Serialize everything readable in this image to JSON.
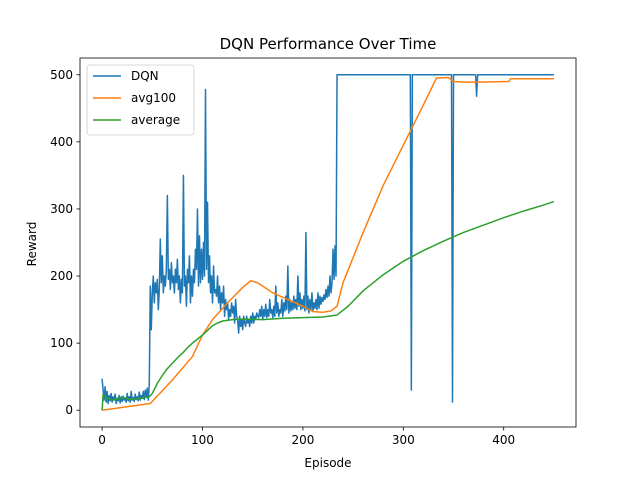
{
  "chart_data": {
    "type": "line",
    "title": "DQN Performance Over Time",
    "xlabel": "Episode",
    "ylabel": "Reward",
    "xlim": [
      -22,
      472
    ],
    "ylim": [
      -25,
      525
    ],
    "xticks": [
      0,
      100,
      200,
      300,
      400
    ],
    "yticks": [
      0,
      100,
      200,
      300,
      400,
      500
    ],
    "grid": false,
    "legend": "top-left",
    "series": [
      {
        "name": "DQN",
        "color": "#1f77b4",
        "points": [
          [
            0,
            47
          ],
          [
            1,
            30
          ],
          [
            2,
            15
          ],
          [
            3,
            35
          ],
          [
            4,
            12
          ],
          [
            5,
            28
          ],
          [
            6,
            10
          ],
          [
            7,
            22
          ],
          [
            8,
            14
          ],
          [
            9,
            25
          ],
          [
            10,
            12
          ],
          [
            11,
            20
          ],
          [
            12,
            15
          ],
          [
            13,
            24
          ],
          [
            14,
            10
          ],
          [
            15,
            18
          ],
          [
            16,
            14
          ],
          [
            17,
            22
          ],
          [
            18,
            11
          ],
          [
            19,
            20
          ],
          [
            20,
            13
          ],
          [
            21,
            21
          ],
          [
            22,
            15
          ],
          [
            23,
            18
          ],
          [
            24,
            12
          ],
          [
            25,
            25
          ],
          [
            26,
            14
          ],
          [
            27,
            20
          ],
          [
            28,
            12
          ],
          [
            29,
            28
          ],
          [
            30,
            15
          ],
          [
            31,
            19
          ],
          [
            32,
            13
          ],
          [
            33,
            24
          ],
          [
            34,
            16
          ],
          [
            35,
            20
          ],
          [
            36,
            14
          ],
          [
            37,
            27
          ],
          [
            38,
            15
          ],
          [
            39,
            22
          ],
          [
            40,
            18
          ],
          [
            41,
            28
          ],
          [
            42,
            16
          ],
          [
            43,
            30
          ],
          [
            44,
            20
          ],
          [
            45,
            33
          ],
          [
            46,
            15
          ],
          [
            47,
            40
          ],
          [
            48,
            185
          ],
          [
            49,
            120
          ],
          [
            50,
            175
          ],
          [
            51,
            200
          ],
          [
            52,
            160
          ],
          [
            53,
            190
          ],
          [
            54,
            175
          ],
          [
            55,
            195
          ],
          [
            56,
            150
          ],
          [
            57,
            180
          ],
          [
            58,
            255
          ],
          [
            59,
            190
          ],
          [
            60,
            230
          ],
          [
            61,
            175
          ],
          [
            62,
            200
          ],
          [
            63,
            185
          ],
          [
            64,
            210
          ],
          [
            65,
            320
          ],
          [
            66,
            195
          ],
          [
            67,
            210
          ],
          [
            68,
            180
          ],
          [
            69,
            220
          ],
          [
            70,
            190
          ],
          [
            71,
            200
          ],
          [
            72,
            175
          ],
          [
            73,
            210
          ],
          [
            74,
            190
          ],
          [
            75,
            225
          ],
          [
            76,
            180
          ],
          [
            77,
            200
          ],
          [
            78,
            160
          ],
          [
            79,
            195
          ],
          [
            80,
            175
          ],
          [
            81,
            350
          ],
          [
            82,
            185
          ],
          [
            83,
            200
          ],
          [
            84,
            155
          ],
          [
            85,
            210
          ],
          [
            86,
            190
          ],
          [
            87,
            230
          ],
          [
            88,
            160
          ],
          [
            89,
            200
          ],
          [
            90,
            170
          ],
          [
            91,
            210
          ],
          [
            92,
            190
          ],
          [
            93,
            240
          ],
          [
            94,
            210
          ],
          [
            95,
            300
          ],
          [
            96,
            185
          ],
          [
            97,
            260
          ],
          [
            98,
            190
          ],
          [
            99,
            240
          ],
          [
            100,
            195
          ],
          [
            101,
            250
          ],
          [
            102,
            200
          ],
          [
            103,
            478
          ],
          [
            104,
            210
          ],
          [
            105,
            310
          ],
          [
            106,
            190
          ],
          [
            107,
            230
          ],
          [
            108,
            175
          ],
          [
            109,
            200
          ],
          [
            110,
            160
          ],
          [
            111,
            215
          ],
          [
            112,
            175
          ],
          [
            113,
            180
          ],
          [
            114,
            170
          ],
          [
            115,
            200
          ],
          [
            116,
            160
          ],
          [
            117,
            185
          ],
          [
            118,
            150
          ],
          [
            119,
            175
          ],
          [
            120,
            160
          ],
          [
            121,
            185
          ],
          [
            122,
            140
          ],
          [
            123,
            165
          ],
          [
            124,
            150
          ],
          [
            125,
            160
          ],
          [
            126,
            135
          ],
          [
            127,
            150
          ],
          [
            128,
            140
          ],
          [
            129,
            160
          ],
          [
            130,
            145
          ],
          [
            131,
            155
          ],
          [
            132,
            130
          ],
          [
            133,
            165
          ],
          [
            134,
            140
          ],
          [
            135,
            135
          ],
          [
            136,
            115
          ],
          [
            137,
            140
          ],
          [
            138,
            125
          ],
          [
            139,
            135
          ],
          [
            140,
            120
          ],
          [
            141,
            140
          ],
          [
            142,
            130
          ],
          [
            143,
            125
          ],
          [
            144,
            140
          ],
          [
            145,
            130
          ],
          [
            146,
            135
          ],
          [
            147,
            125
          ],
          [
            148,
            140
          ],
          [
            149,
            130
          ],
          [
            150,
            145
          ],
          [
            151,
            130
          ],
          [
            152,
            140
          ],
          [
            153,
            135
          ],
          [
            154,
            145
          ],
          [
            155,
            140
          ],
          [
            156,
            138
          ],
          [
            157,
            150
          ],
          [
            158,
            140
          ],
          [
            159,
            155
          ],
          [
            160,
            135
          ],
          [
            161,
            150
          ],
          [
            162,
            140
          ],
          [
            163,
            158
          ],
          [
            164,
            138
          ],
          [
            165,
            150
          ],
          [
            166,
            140
          ],
          [
            167,
            165
          ],
          [
            168,
            145
          ],
          [
            169,
            150
          ],
          [
            170,
            138
          ],
          [
            171,
            155
          ],
          [
            172,
            140
          ],
          [
            173,
            185
          ],
          [
            174,
            145
          ],
          [
            175,
            160
          ],
          [
            176,
            140
          ],
          [
            177,
            150
          ],
          [
            178,
            145
          ],
          [
            179,
            165
          ],
          [
            180,
            140
          ],
          [
            181,
            160
          ],
          [
            182,
            148
          ],
          [
            183,
            170
          ],
          [
            184,
            150
          ],
          [
            185,
            215
          ],
          [
            186,
            145
          ],
          [
            187,
            165
          ],
          [
            188,
            148
          ],
          [
            189,
            160
          ],
          [
            190,
            150
          ],
          [
            191,
            170
          ],
          [
            192,
            152
          ],
          [
            193,
            165
          ],
          [
            194,
            150
          ],
          [
            195,
            200
          ],
          [
            196,
            155
          ],
          [
            197,
            175
          ],
          [
            198,
            150
          ],
          [
            199,
            165
          ],
          [
            200,
            152
          ],
          [
            201,
            170
          ],
          [
            202,
            148
          ],
          [
            203,
            265
          ],
          [
            204,
            150
          ],
          [
            205,
            170
          ],
          [
            206,
            145
          ],
          [
            207,
            165
          ],
          [
            208,
            150
          ],
          [
            209,
            175
          ],
          [
            210,
            148
          ],
          [
            211,
            160
          ],
          [
            212,
            152
          ],
          [
            213,
            165
          ],
          [
            214,
            150
          ],
          [
            215,
            175
          ],
          [
            216,
            152
          ],
          [
            217,
            170
          ],
          [
            218,
            158
          ],
          [
            219,
            168
          ],
          [
            220,
            162
          ],
          [
            221,
            172
          ],
          [
            222,
            165
          ],
          [
            223,
            180
          ],
          [
            224,
            168
          ],
          [
            225,
            185
          ],
          [
            226,
            170
          ],
          [
            227,
            200
          ],
          [
            228,
            175
          ],
          [
            229,
            190
          ],
          [
            230,
            240
          ],
          [
            231,
            195
          ],
          [
            232,
            245
          ],
          [
            233,
            200
          ],
          [
            234,
            500
          ],
          [
            307,
            500
          ],
          [
            308,
            30
          ],
          [
            309,
            500
          ],
          [
            310,
            500
          ],
          [
            347,
            500
          ],
          [
            348,
            500
          ],
          [
            349,
            12
          ],
          [
            350,
            500
          ],
          [
            372,
            500
          ],
          [
            373,
            468
          ],
          [
            374,
            500
          ],
          [
            450,
            500
          ]
        ]
      },
      {
        "name": "avg100",
        "color": "#ff7f0e",
        "points": [
          [
            0,
            0
          ],
          [
            48,
            10
          ],
          [
            70,
            45
          ],
          [
            90,
            80
          ],
          [
            100,
            112
          ],
          [
            110,
            135
          ],
          [
            125,
            160
          ],
          [
            140,
            183
          ],
          [
            148,
            193
          ],
          [
            155,
            190
          ],
          [
            170,
            175
          ],
          [
            185,
            165
          ],
          [
            200,
            155
          ],
          [
            210,
            147
          ],
          [
            220,
            146
          ],
          [
            228,
            148
          ],
          [
            234,
            155
          ],
          [
            240,
            190
          ],
          [
            260,
            265
          ],
          [
            280,
            335
          ],
          [
            300,
            395
          ],
          [
            310,
            425
          ],
          [
            320,
            455
          ],
          [
            333,
            495
          ],
          [
            345,
            496
          ],
          [
            350,
            490
          ],
          [
            360,
            489
          ],
          [
            375,
            489
          ],
          [
            405,
            490
          ],
          [
            407,
            494
          ],
          [
            450,
            494
          ]
        ]
      },
      {
        "name": "average",
        "color": "#2ca02c",
        "points": [
          [
            0,
            0
          ],
          [
            1,
            23
          ],
          [
            5,
            18
          ],
          [
            10,
            15
          ],
          [
            20,
            19
          ],
          [
            30,
            16
          ],
          [
            40,
            18
          ],
          [
            47,
            20
          ],
          [
            50,
            25
          ],
          [
            55,
            40
          ],
          [
            60,
            52
          ],
          [
            65,
            62
          ],
          [
            70,
            70
          ],
          [
            75,
            78
          ],
          [
            80,
            85
          ],
          [
            85,
            93
          ],
          [
            90,
            100
          ],
          [
            95,
            106
          ],
          [
            100,
            112
          ],
          [
            105,
            119
          ],
          [
            110,
            126
          ],
          [
            115,
            130
          ],
          [
            120,
            133
          ],
          [
            130,
            135
          ],
          [
            140,
            136
          ],
          [
            160,
            135
          ],
          [
            180,
            137
          ],
          [
            200,
            138
          ],
          [
            220,
            139
          ],
          [
            234,
            142
          ],
          [
            245,
            155
          ],
          [
            260,
            178
          ],
          [
            280,
            202
          ],
          [
            300,
            222
          ],
          [
            320,
            238
          ],
          [
            340,
            252
          ],
          [
            360,
            265
          ],
          [
            380,
            276
          ],
          [
            400,
            287
          ],
          [
            420,
            297
          ],
          [
            440,
            306
          ],
          [
            450,
            311
          ]
        ]
      }
    ]
  }
}
